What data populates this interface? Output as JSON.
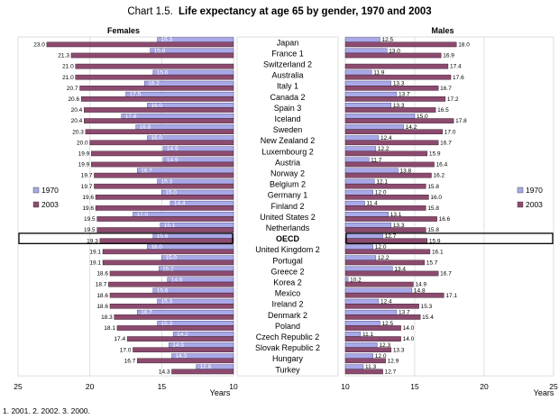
{
  "title_prefix": "Chart 1.5.",
  "title_main": "Life expectancy at age 65 by gender, 1970 and 2003",
  "footnote": "1. 2001.   2. 2002.   3. 2000.",
  "colors": {
    "s1970": "#a9a9e8",
    "s2003": "#8c4b6e",
    "oecd_box": "#000000",
    "grid": "#d8d8d8"
  },
  "chart_data": [
    {
      "type": "bar",
      "title": "Females",
      "xlabel": "Years",
      "orientation": "horizontal-reversed",
      "xlim": [
        10,
        25
      ],
      "xticks": [
        "25",
        "20",
        "15",
        "10"
      ],
      "legend": [
        "1970",
        "2003"
      ],
      "legend_position": "left",
      "categories": [
        "Japan",
        "France 1",
        "Switzerland 2",
        "Australia",
        "Italy 1",
        "Canada 2",
        "Spain 3",
        "Iceland",
        "Sweden",
        "New Zealand 2",
        "Luxembourg 2",
        "Austria",
        "Norway 2",
        "Belgium 2",
        "Germany 1",
        "Finland 2",
        "United States 2",
        "Netherlands",
        "OECD",
        "United Kingdom 2",
        "Portugal",
        "Greece 2",
        "Korea 2",
        "Mexico",
        "Ireland 2",
        "Denmark 2",
        "Poland",
        "Czech Republic 2",
        "Slovak Republic 2",
        "Hungary",
        "Turkey"
      ],
      "series": [
        {
          "name": "1970",
          "values": [
            15.3,
            15.8,
            null,
            15.6,
            16.2,
            17.5,
            16.0,
            17.8,
            16.8,
            16.0,
            14.9,
            14.9,
            16.7,
            15.3,
            15.0,
            14.4,
            17.0,
            15.1,
            15.6,
            16.0,
            15.0,
            15.2,
            14.6,
            15.6,
            15.3,
            16.7,
            15.3,
            14.2,
            14.5,
            14.3,
            12.6
          ]
        },
        {
          "name": "2003",
          "values": [
            23.0,
            21.3,
            21.0,
            21.0,
            20.7,
            20.6,
            20.4,
            20.4,
            20.3,
            20.0,
            19.9,
            19.9,
            19.7,
            19.7,
            19.6,
            19.6,
            19.5,
            19.5,
            19.3,
            19.1,
            19.1,
            18.6,
            18.7,
            18.6,
            18.6,
            18.3,
            18.1,
            17.4,
            17.0,
            16.7,
            14.3
          ]
        }
      ]
    },
    {
      "type": "bar",
      "title": "Males",
      "xlabel": "Years",
      "orientation": "horizontal",
      "xlim": [
        10,
        25
      ],
      "xticks": [
        "10",
        "15",
        "20",
        "25"
      ],
      "legend": [
        "1970",
        "2003"
      ],
      "legend_position": "right",
      "categories": [
        "Japan",
        "France 1",
        "Switzerland 2",
        "Australia",
        "Italy 1",
        "Canada 2",
        "Spain 3",
        "Iceland",
        "Sweden",
        "New Zealand 2",
        "Luxembourg 2",
        "Austria",
        "Norway 2",
        "Belgium 2",
        "Germany 1",
        "Finland 2",
        "United States 2",
        "Netherlands",
        "OECD",
        "United Kingdom 2",
        "Portugal",
        "Greece 2",
        "Korea 2",
        "Mexico",
        "Ireland 2",
        "Denmark 2",
        "Poland",
        "Czech Republic 2",
        "Slovak Republic 2",
        "Hungary",
        "Turkey"
      ],
      "series": [
        {
          "name": "1970",
          "values": [
            12.5,
            13.0,
            null,
            11.9,
            13.3,
            13.7,
            13.3,
            15.0,
            14.2,
            12.4,
            12.2,
            11.7,
            13.8,
            12.1,
            12.0,
            11.4,
            13.1,
            13.3,
            12.7,
            12.0,
            12.2,
            13.4,
            10.2,
            14.8,
            12.4,
            13.7,
            12.5,
            11.1,
            12.3,
            12.0,
            11.3
          ]
        },
        {
          "name": "2003",
          "values": [
            18.0,
            16.9,
            17.4,
            17.6,
            16.7,
            17.2,
            16.5,
            17.8,
            17.0,
            16.7,
            15.9,
            16.4,
            16.2,
            15.8,
            16.0,
            15.8,
            16.6,
            15.8,
            15.9,
            16.1,
            15.7,
            16.7,
            14.9,
            17.1,
            15.3,
            15.4,
            14.0,
            14.0,
            13.3,
            12.9,
            12.7
          ]
        }
      ]
    }
  ]
}
